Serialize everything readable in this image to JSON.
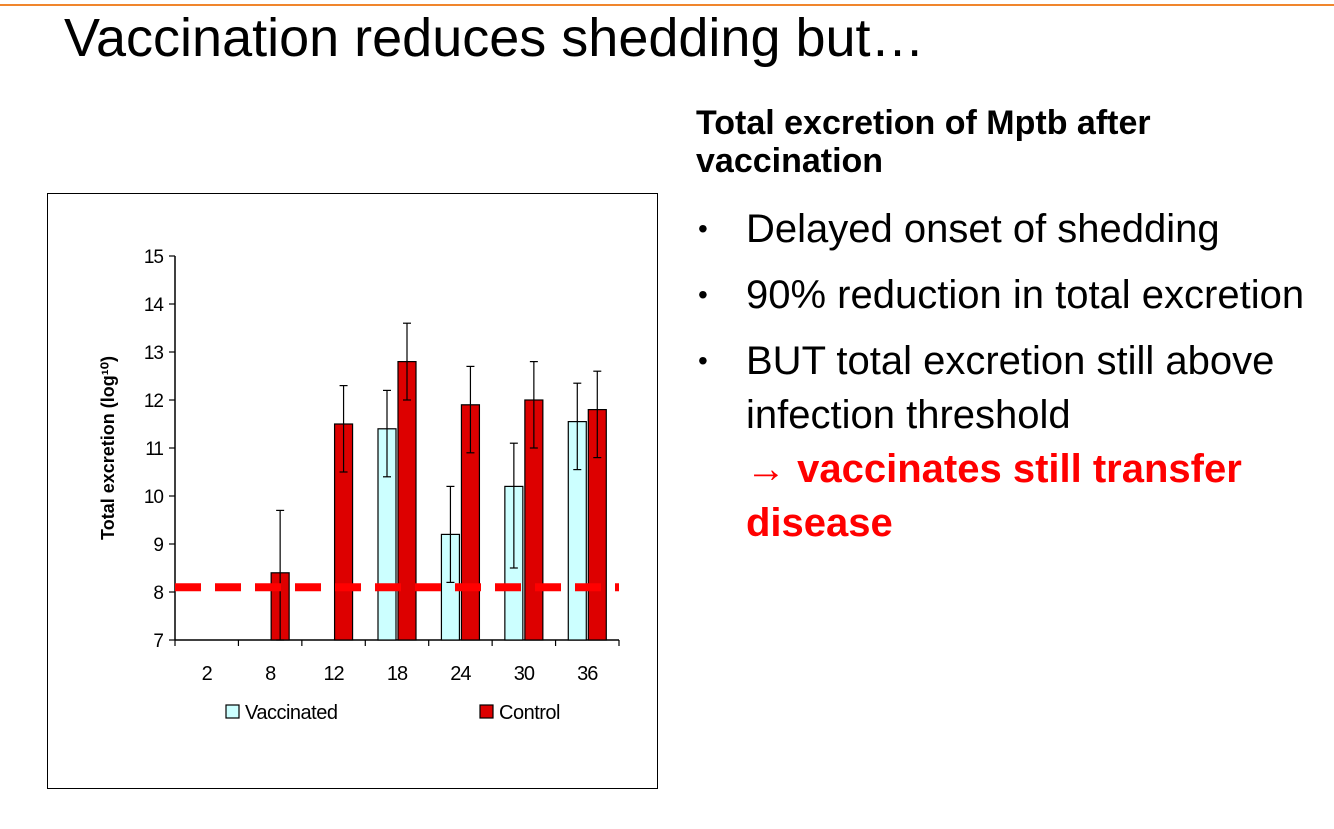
{
  "slide": {
    "title": "Vaccination reduces shedding but…"
  },
  "panel": {
    "heading": "Total excretion of Mptb after vaccination",
    "bullets": [
      {
        "text": "Delayed onset of shedding",
        "emphasis": ""
      },
      {
        "text": "90% reduction in total excretion",
        "emphasis": ""
      },
      {
        "text": "BUT total excretion still above infection threshold",
        "emphasis": "→ vaccinates still transfer disease"
      }
    ],
    "bullet_symbol": "•",
    "emphasis_color": "#ff0000"
  },
  "chart_data": {
    "type": "bar",
    "title": "",
    "xlabel": "",
    "ylabel": "Total excretion (log¹⁰)",
    "ylim": [
      7,
      15
    ],
    "yticks": [
      "7",
      "8",
      "9",
      "10",
      "11",
      "12",
      "13",
      "14",
      "15"
    ],
    "categories": [
      "2",
      "8",
      "12",
      "18",
      "24",
      "30",
      "36"
    ],
    "series": [
      {
        "name": "Vaccinated",
        "color": "#ccffff",
        "values": [
          null,
          null,
          null,
          11.4,
          9.2,
          10.2,
          11.55
        ],
        "error_low": [
          null,
          null,
          null,
          10.4,
          8.2,
          8.5,
          10.55
        ],
        "error_high": [
          null,
          null,
          null,
          12.2,
          10.2,
          11.1,
          12.35
        ]
      },
      {
        "name": "Control",
        "color": "#dd0000",
        "values": [
          null,
          8.4,
          11.5,
          12.8,
          11.9,
          12.0,
          11.8
        ],
        "error_low": [
          null,
          7.0,
          10.5,
          12.0,
          10.9,
          11.0,
          10.8
        ],
        "error_high": [
          null,
          9.7,
          12.3,
          13.6,
          12.7,
          12.8,
          12.6
        ]
      }
    ],
    "threshold": {
      "value": 8.1,
      "color": "#ff0000",
      "style": "dashed"
    },
    "legend": {
      "placement": "bottom"
    },
    "grid": false
  }
}
